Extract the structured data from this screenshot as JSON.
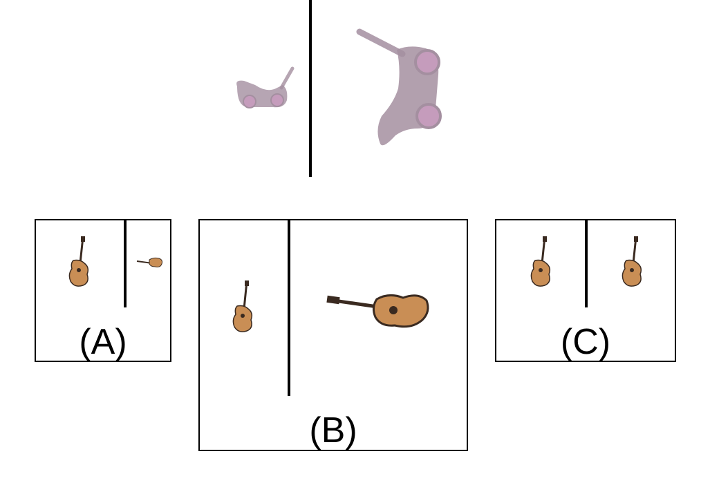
{
  "colors": {
    "line": "#000000",
    "stroller_body": "#a48fa0",
    "stroller_wheel": "#c59cbc",
    "guitar_body": "#c98e55",
    "guitar_dark": "#3a2a20",
    "background": "#ffffff"
  },
  "prompt": {
    "icons": [
      "stroller-icon",
      "stroller-icon"
    ]
  },
  "options": [
    {
      "id": "A",
      "label": "(A)",
      "icon": "guitar-icon"
    },
    {
      "id": "B",
      "label": "(B)",
      "icon": "guitar-icon"
    },
    {
      "id": "C",
      "label": "(C)",
      "icon": "guitar-icon"
    }
  ]
}
